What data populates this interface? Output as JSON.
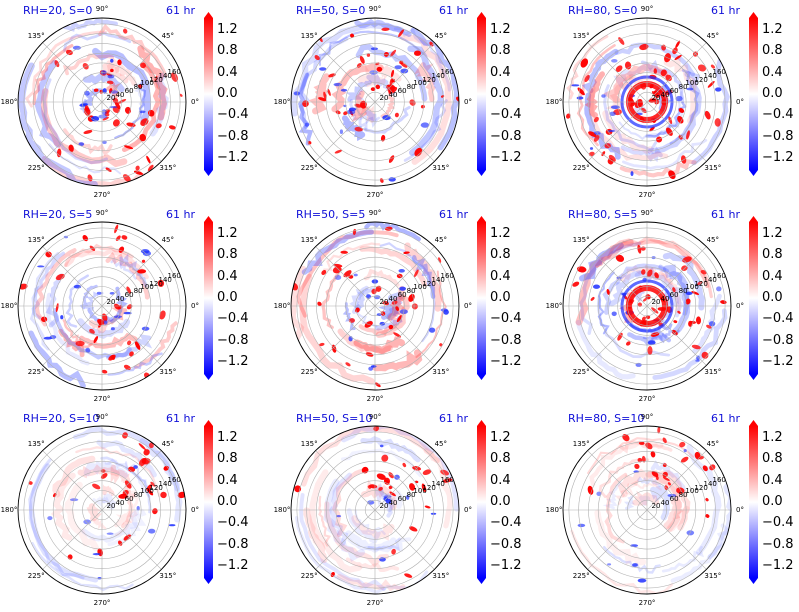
{
  "chart_data": {
    "type": "polar-field",
    "time_label": "61 hr",
    "angle_ticks": [
      "0°",
      "45°",
      "90°",
      "135°",
      "180°",
      "225°",
      "270°",
      "315°"
    ],
    "radius_ticks": [
      "20",
      "40",
      "60",
      "80",
      "100",
      "120",
      "140",
      "160"
    ],
    "colorbar": {
      "ticks": [
        "1.2",
        "0.8",
        "0.4",
        "0.0",
        "−0.4",
        "−0.8",
        "−1.2"
      ],
      "range": [
        -1.4,
        1.4
      ],
      "colors": {
        "high": "#ff0000",
        "mid": "#ffffff",
        "low": "#0000ff"
      }
    },
    "panels": [
      {
        "title": "RH=20, S=0"
      },
      {
        "title": "RH=50, S=0"
      },
      {
        "title": "RH=80, S=0"
      },
      {
        "title": "RH=20, S=5"
      },
      {
        "title": "RH=50, S=5"
      },
      {
        "title": "RH=80, S=5"
      },
      {
        "title": "RH=20, S=10"
      },
      {
        "title": "RH=50, S=10"
      },
      {
        "title": "RH=80, S=10"
      }
    ]
  }
}
